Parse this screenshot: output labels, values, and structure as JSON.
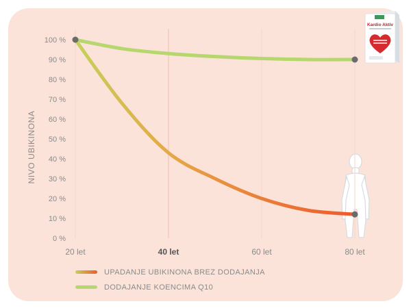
{
  "chart_data": {
    "type": "line",
    "ylabel": "NIVO UBIKINONA",
    "x": [
      20,
      40,
      60,
      80
    ],
    "x_tick_labels": [
      "20 let",
      "40 let",
      "60 let",
      "80 let"
    ],
    "x_tick_emphasis": "40 let",
    "xlim": [
      20,
      80
    ],
    "ylim": [
      0,
      100
    ],
    "y_ticks": [
      0,
      10,
      20,
      30,
      40,
      50,
      60,
      70,
      80,
      90,
      100
    ],
    "y_tick_labels": [
      "0 %",
      "10 %",
      "20 %",
      "30 %",
      "40 %",
      "50 %",
      "60 %",
      "70 %",
      "80 %",
      "90 %",
      "100 %"
    ],
    "grid": "vertical",
    "legend_position": "bottom-left",
    "series": [
      {
        "name": "UPADANJE UBIKINONA BREZ DODAJANJA",
        "color_start": "#c4d25c",
        "color_end": "#ee5a2c",
        "points": [
          [
            20,
            100
          ],
          [
            30,
            68
          ],
          [
            40,
            43
          ],
          [
            50,
            30
          ],
          [
            60,
            20
          ],
          [
            70,
            14
          ],
          [
            80,
            12
          ]
        ]
      },
      {
        "name": "DODAJANJE KOENCIMA Q10",
        "color": "#b5d76e",
        "points": [
          [
            20,
            100
          ],
          [
            30,
            95.5
          ],
          [
            40,
            93
          ],
          [
            50,
            91.5
          ],
          [
            60,
            90.5
          ],
          [
            70,
            90
          ],
          [
            80,
            90
          ]
        ]
      }
    ],
    "marker_color": "#6b6b6b"
  },
  "product": {
    "brand": "Kardio Aktiv"
  },
  "colors": {
    "card_background": "#fbe3da",
    "axis_text": "#8a8a8a",
    "grid": "#f6d5ca",
    "figure_fill": "#ffffff",
    "figure_stroke": "#d8dbe2"
  }
}
